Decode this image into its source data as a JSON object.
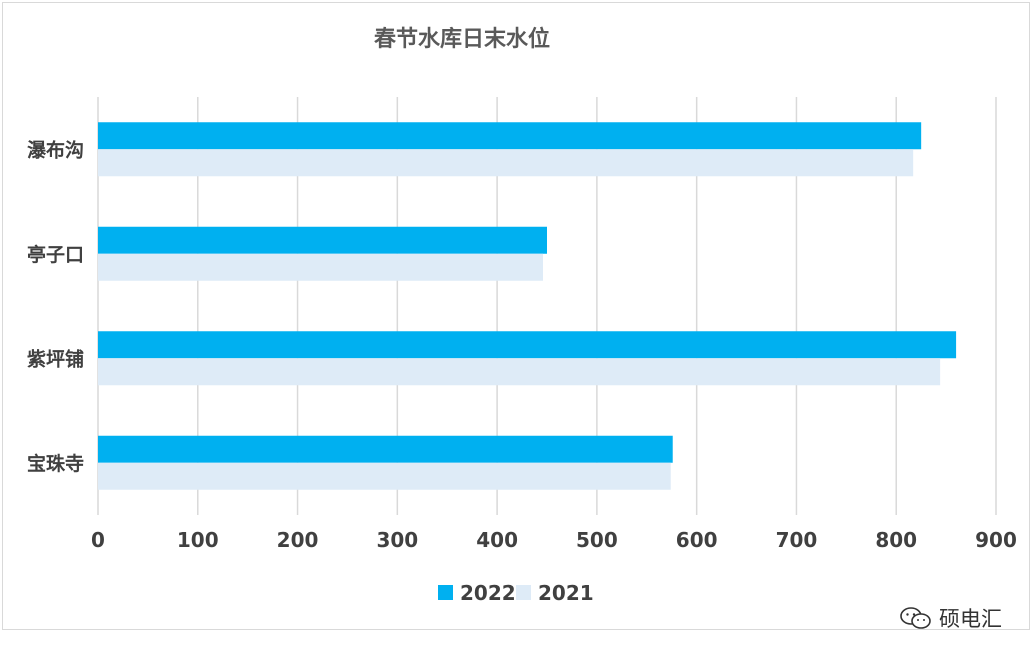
{
  "chart_data": {
    "type": "bar",
    "orientation": "horizontal",
    "title": "春节水库日末水位",
    "categories": [
      "瀑布沟",
      "亭子口",
      "紫坪铺",
      "宝珠寺"
    ],
    "series": [
      {
        "name": "2022",
        "values": [
          825,
          450,
          860,
          576
        ],
        "color": "#00b0f0"
      },
      {
        "name": "2021",
        "values": [
          817,
          446,
          844,
          574
        ],
        "color": "#deebf7"
      }
    ],
    "xlim": [
      0,
      900
    ],
    "xticks": [
      0,
      100,
      200,
      300,
      400,
      500,
      600,
      700,
      800,
      900
    ],
    "grid": true,
    "legend_position": "bottom"
  },
  "watermark": {
    "text": "硕电汇",
    "icon": "wechat-icon"
  }
}
